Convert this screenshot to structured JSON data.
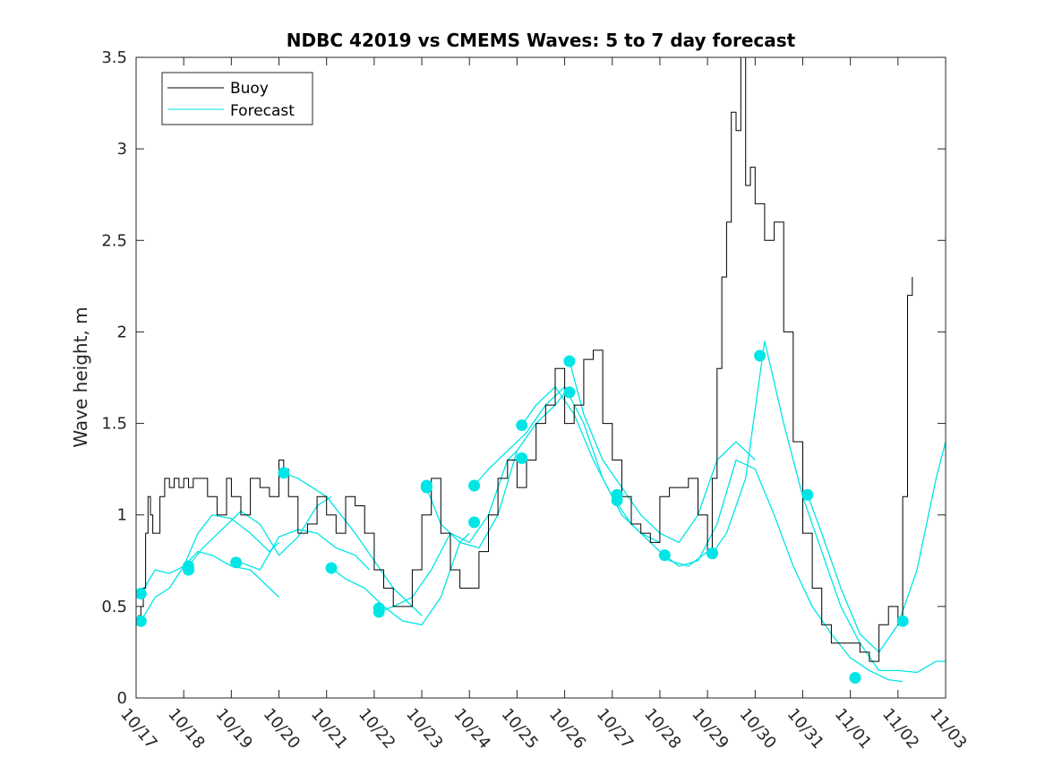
{
  "chart_data": {
    "type": "line",
    "title": "NDBC 42019 vs CMEMS Waves: 5 to 7 day forecast",
    "xlabel": "",
    "ylabel": "Wave height, m",
    "xlim": [
      0,
      17
    ],
    "ylim": [
      0,
      3.5
    ],
    "x_tick_labels": [
      "10/17",
      "10/18",
      "10/19",
      "10/20",
      "10/21",
      "10/22",
      "10/23",
      "10/24",
      "10/25",
      "10/26",
      "10/27",
      "10/28",
      "10/29",
      "10/30",
      "10/31",
      "11/01",
      "11/02",
      "11/03"
    ],
    "y_ticks": [
      0,
      0.5,
      1,
      1.5,
      2,
      2.5,
      3,
      3.5
    ],
    "y_tick_labels": [
      "0",
      "0.5",
      "1",
      "1.5",
      "2",
      "2.5",
      "3",
      "3.5"
    ],
    "legend": {
      "position": "top-left",
      "entries": [
        "Buoy",
        "Forecast"
      ]
    },
    "colors": {
      "buoy": "#000000",
      "forecast": "#00e5e5"
    },
    "series": [
      {
        "name": "Buoy",
        "x": [
          0,
          0.05,
          0.1,
          0.15,
          0.2,
          0.25,
          0.3,
          0.35,
          0.4,
          0.5,
          0.6,
          0.7,
          0.8,
          0.9,
          1.0,
          1.1,
          1.2,
          1.3,
          1.5,
          1.7,
          1.9,
          2.0,
          2.2,
          2.4,
          2.6,
          2.8,
          3.0,
          3.1,
          3.2,
          3.4,
          3.6,
          3.8,
          4.0,
          4.2,
          4.4,
          4.6,
          4.8,
          5.0,
          5.2,
          5.4,
          5.6,
          5.8,
          6.0,
          6.2,
          6.4,
          6.6,
          6.8,
          7.0,
          7.2,
          7.4,
          7.6,
          7.8,
          8.0,
          8.2,
          8.4,
          8.6,
          8.8,
          9.0,
          9.2,
          9.4,
          9.6,
          9.8,
          10.0,
          10.2,
          10.4,
          10.6,
          10.8,
          11.0,
          11.2,
          11.4,
          11.6,
          11.8,
          12.0,
          12.1,
          12.2,
          12.3,
          12.4,
          12.5,
          12.6,
          12.7,
          12.8,
          12.9,
          13.0,
          13.2,
          13.4,
          13.6,
          13.8,
          14.0,
          14.2,
          14.4,
          14.6,
          14.8,
          15.0,
          15.2,
          15.4,
          15.6,
          15.8,
          16.0,
          16.1,
          16.2,
          16.3
        ],
        "values": [
          0.4,
          0.45,
          0.5,
          0.6,
          0.9,
          1.1,
          1.0,
          0.9,
          0.9,
          1.1,
          1.2,
          1.15,
          1.2,
          1.15,
          1.2,
          1.15,
          1.2,
          1.2,
          1.1,
          1.0,
          1.2,
          1.1,
          1.0,
          1.2,
          1.15,
          1.1,
          1.3,
          1.25,
          1.1,
          0.9,
          0.95,
          1.1,
          1.0,
          0.9,
          1.1,
          1.05,
          0.9,
          0.7,
          0.6,
          0.5,
          0.5,
          0.7,
          1.0,
          1.2,
          0.9,
          0.7,
          0.6,
          0.6,
          0.8,
          1.0,
          1.2,
          1.3,
          1.15,
          1.3,
          1.5,
          1.6,
          1.8,
          1.5,
          1.6,
          1.85,
          1.9,
          1.5,
          1.3,
          1.1,
          0.95,
          0.9,
          0.85,
          1.1,
          1.15,
          1.15,
          1.2,
          1.0,
          0.8,
          1.2,
          1.8,
          2.3,
          2.6,
          3.2,
          3.1,
          3.5,
          2.8,
          2.9,
          2.7,
          2.5,
          2.6,
          2.0,
          1.4,
          0.9,
          0.6,
          0.4,
          0.3,
          0.3,
          0.3,
          0.25,
          0.2,
          0.4,
          0.5,
          0.4,
          1.1,
          2.2,
          2.3
        ]
      },
      {
        "name": "Forecast",
        "segments": [
          {
            "x": [
              0.1,
              0.4,
              0.7,
              1.0,
              1.3,
              1.6,
              2.0,
              2.4,
              2.8,
              3.0
            ],
            "values": [
              0.57,
              0.7,
              0.68,
              0.72,
              0.9,
              1.0,
              0.98,
              0.9,
              0.8,
              0.85
            ]
          },
          {
            "x": [
              0.1,
              0.4,
              0.7,
              1.0,
              1.3,
              1.6,
              2.0,
              2.4,
              2.8,
              3.0
            ],
            "values": [
              0.42,
              0.55,
              0.6,
              0.72,
              0.8,
              0.78,
              0.72,
              0.7,
              0.6,
              0.55
            ]
          },
          {
            "x": [
              1.1,
              1.4,
              1.8,
              2.2,
              2.6,
              3.0,
              3.4,
              3.8,
              4.1
            ],
            "values": [
              0.72,
              0.82,
              0.92,
              1.02,
              0.95,
              0.78,
              0.88,
              1.05,
              1.1
            ]
          },
          {
            "x": [
              2.2,
              2.6,
              3.0,
              3.4,
              3.8,
              4.2,
              4.6,
              4.9
            ],
            "values": [
              0.74,
              0.7,
              0.88,
              0.92,
              0.9,
              0.82,
              0.78,
              0.7
            ]
          },
          {
            "x": [
              3.1,
              3.4,
              3.7,
              4.0,
              4.3,
              4.6,
              5.0,
              5.4,
              5.8,
              6.0
            ],
            "values": [
              1.23,
              1.2,
              1.15,
              1.1,
              1.0,
              0.9,
              0.75,
              0.6,
              0.5,
              0.45
            ]
          },
          {
            "x": [
              4.1,
              4.4,
              4.8,
              5.2,
              5.6,
              6.0,
              6.4,
              6.8,
              7.0
            ],
            "values": [
              0.71,
              0.65,
              0.6,
              0.5,
              0.42,
              0.4,
              0.55,
              0.85,
              0.9
            ]
          },
          {
            "x": [
              5.1,
              5.4,
              5.8,
              6.2,
              6.6,
              7.0,
              7.4,
              7.8,
              8.0
            ],
            "values": [
              0.47,
              0.5,
              0.55,
              0.7,
              0.9,
              0.85,
              1.0,
              1.3,
              1.35
            ]
          },
          {
            "x": [
              6.1,
              6.4,
              6.8,
              7.2,
              7.6,
              8.0,
              8.4,
              8.8,
              9.1
            ],
            "values": [
              1.15,
              0.95,
              0.85,
              0.82,
              1.0,
              1.35,
              1.5,
              1.6,
              1.7
            ]
          },
          {
            "x": [
              7.1,
              7.4,
              7.8,
              8.2,
              8.6,
              9.0,
              9.4,
              9.8,
              10.2,
              10.6,
              11.0
            ],
            "values": [
              1.16,
              1.25,
              1.35,
              1.45,
              1.6,
              1.7,
              1.5,
              1.2,
              1.0,
              0.9,
              0.85
            ]
          },
          {
            "x": [
              8.1,
              8.4,
              8.8,
              9.2,
              9.6,
              10.0,
              10.4,
              10.8,
              11.2,
              11.6,
              12.0
            ],
            "values": [
              1.49,
              1.6,
              1.7,
              1.55,
              1.3,
              1.1,
              0.95,
              0.85,
              0.75,
              0.72,
              0.8
            ]
          },
          {
            "x": [
              9.1,
              9.4,
              9.8,
              10.2,
              10.6,
              11.0,
              11.4,
              11.8,
              12.2,
              12.6,
              13.0
            ],
            "values": [
              1.84,
              1.55,
              1.3,
              1.15,
              1.0,
              0.9,
              0.85,
              1.0,
              1.3,
              1.4,
              1.3
            ]
          },
          {
            "x": [
              11.1,
              11.4,
              11.8,
              12.2,
              12.6,
              13.0,
              13.4,
              13.8,
              14.2,
              14.6,
              15.0,
              15.4,
              15.8,
              16.1
            ],
            "values": [
              0.78,
              0.72,
              0.75,
              0.95,
              1.3,
              1.25,
              1.0,
              0.72,
              0.5,
              0.35,
              0.22,
              0.15,
              0.1,
              0.09
            ]
          },
          {
            "x": [
              12.1,
              12.4,
              12.8,
              13.2,
              13.6,
              14.0,
              14.4,
              14.8,
              15.2,
              15.6,
              16.0,
              16.4,
              16.8,
              17.0
            ],
            "values": [
              0.79,
              0.9,
              1.2,
              1.95,
              1.5,
              1.1,
              0.8,
              0.5,
              0.3,
              0.15,
              0.15,
              0.14,
              0.2,
              0.2
            ]
          },
          {
            "x": [
              14.1,
              14.4,
              14.8,
              15.2,
              15.6,
              16.0,
              16.4,
              16.8,
              17.0
            ],
            "values": [
              1.11,
              0.9,
              0.6,
              0.35,
              0.25,
              0.4,
              0.7,
              1.2,
              1.4
            ]
          }
        ],
        "markers": {
          "x": [
            0.1,
            0.1,
            1.1,
            1.1,
            2.1,
            3.1,
            4.1,
            5.1,
            5.1,
            6.1,
            6.1,
            7.1,
            7.1,
            8.1,
            8.1,
            9.1,
            9.1,
            10.1,
            10.1,
            11.1,
            12.1,
            12.1,
            13.1,
            14.1,
            15.1,
            16.1
          ],
          "values": [
            0.57,
            0.42,
            0.72,
            0.7,
            0.74,
            1.23,
            0.71,
            0.49,
            0.47,
            1.16,
            1.15,
            1.16,
            0.96,
            1.49,
            1.31,
            1.84,
            1.67,
            1.11,
            1.08,
            0.78,
            0.79,
            0.79,
            1.87,
            1.11,
            0.11,
            0.42
          ]
        }
      }
    ]
  }
}
